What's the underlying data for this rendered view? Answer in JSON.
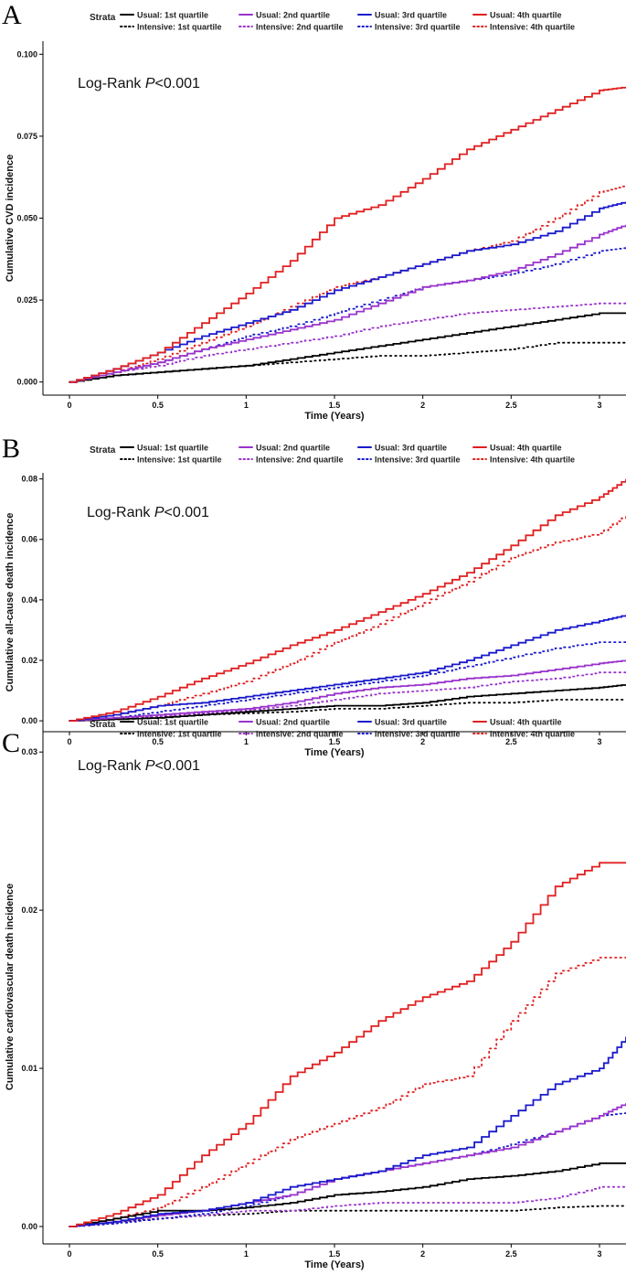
{
  "chart_data": [
    {
      "type": "line",
      "panel_label": "A",
      "legend_title": "Strata",
      "annotation_prefix": "Log-Rank ",
      "annotation_p": "P",
      "annotation_suffix": "<0.001",
      "xlabel": "Time (Years)",
      "ylabel": "Cumulative CVD incidence",
      "xlim": [
        -0.15,
        3.15
      ],
      "ylim": [
        -0.004,
        0.104
      ],
      "xticks": [
        0,
        0.5,
        1,
        1.5,
        2,
        2.5,
        3
      ],
      "xtick_labels": [
        "0",
        "0.5",
        "1",
        "1.5",
        "2",
        "2.5",
        "3"
      ],
      "yticks": [
        0,
        0.025,
        0.05,
        0.075,
        0.1
      ],
      "ytick_labels": [
        "0.000",
        "0.025",
        "0.050",
        "0.075",
        "0.100"
      ],
      "series": [
        {
          "name": "Usual: 1st quartile",
          "color": "#000000",
          "style": "solid",
          "x": [
            0,
            0.25,
            0.5,
            0.75,
            1,
            1.25,
            1.5,
            1.75,
            2,
            2.25,
            2.5,
            2.75,
            3,
            3.15
          ],
          "values": [
            0,
            0.002,
            0.003,
            0.004,
            0.005,
            0.007,
            0.009,
            0.011,
            0.013,
            0.015,
            0.017,
            0.019,
            0.021,
            0.021
          ]
        },
        {
          "name": "Intensive: 1st quartile",
          "color": "#000000",
          "style": "dotted",
          "x": [
            0,
            0.25,
            0.5,
            0.75,
            1,
            1.25,
            1.5,
            1.75,
            2,
            2.25,
            2.5,
            2.75,
            3,
            3.15
          ],
          "values": [
            0,
            0.002,
            0.003,
            0.004,
            0.005,
            0.006,
            0.007,
            0.008,
            0.008,
            0.009,
            0.01,
            0.012,
            0.012,
            0.012
          ]
        },
        {
          "name": "Usual: 2nd quartile",
          "color": "#9933cc",
          "style": "solid",
          "x": [
            0,
            0.25,
            0.5,
            0.75,
            1,
            1.25,
            1.5,
            1.75,
            2,
            2.25,
            2.5,
            2.75,
            3,
            3.15
          ],
          "values": [
            0,
            0.003,
            0.006,
            0.01,
            0.013,
            0.016,
            0.019,
            0.024,
            0.029,
            0.031,
            0.034,
            0.039,
            0.045,
            0.048
          ]
        },
        {
          "name": "Intensive: 2nd quartile",
          "color": "#9933cc",
          "style": "dotted",
          "x": [
            0,
            0.25,
            0.5,
            0.75,
            1,
            1.25,
            1.5,
            1.75,
            2,
            2.25,
            2.5,
            2.75,
            3,
            3.15
          ],
          "values": [
            0,
            0.003,
            0.005,
            0.008,
            0.01,
            0.012,
            0.014,
            0.017,
            0.019,
            0.021,
            0.022,
            0.023,
            0.024,
            0.024
          ]
        },
        {
          "name": "Usual: 3rd quartile",
          "color": "#1a1acc",
          "style": "solid",
          "x": [
            0,
            0.25,
            0.5,
            0.75,
            1,
            1.25,
            1.5,
            1.75,
            2,
            2.25,
            2.5,
            2.75,
            3,
            3.15
          ],
          "values": [
            0,
            0.004,
            0.009,
            0.014,
            0.018,
            0.022,
            0.028,
            0.032,
            0.036,
            0.04,
            0.042,
            0.046,
            0.053,
            0.055
          ]
        },
        {
          "name": "Intensive: 3rd quartile",
          "color": "#1a1acc",
          "style": "dotted",
          "x": [
            0,
            0.25,
            0.5,
            0.75,
            1,
            1.25,
            1.5,
            1.75,
            2,
            2.25,
            2.5,
            2.75,
            3,
            3.15
          ],
          "values": [
            0,
            0.003,
            0.006,
            0.01,
            0.014,
            0.017,
            0.021,
            0.025,
            0.029,
            0.031,
            0.033,
            0.036,
            0.04,
            0.041
          ]
        },
        {
          "name": "Usual: 4th quartile",
          "color": "#e02020",
          "style": "solid",
          "x": [
            0,
            0.25,
            0.5,
            0.75,
            1,
            1.25,
            1.5,
            1.75,
            2,
            2.25,
            2.5,
            2.75,
            3,
            3.15
          ],
          "values": [
            0,
            0.004,
            0.009,
            0.018,
            0.027,
            0.037,
            0.05,
            0.054,
            0.062,
            0.071,
            0.077,
            0.083,
            0.089,
            0.09
          ]
        },
        {
          "name": "Intensive: 4th quartile",
          "color": "#e02020",
          "style": "dotted",
          "x": [
            0,
            0.25,
            0.5,
            0.75,
            1,
            1.25,
            1.5,
            1.75,
            2,
            2.25,
            2.5,
            2.75,
            3,
            3.15
          ],
          "values": [
            0,
            0.003,
            0.007,
            0.012,
            0.017,
            0.023,
            0.029,
            0.032,
            0.036,
            0.04,
            0.043,
            0.05,
            0.058,
            0.06
          ]
        }
      ]
    },
    {
      "type": "line",
      "panel_label": "B",
      "legend_title": "Strata",
      "annotation_prefix": "Log-Rank ",
      "annotation_p": "P",
      "annotation_suffix": "<0.001",
      "xlabel": "Time (Years)",
      "ylabel": "Cumulative all-cause death incidence",
      "xlim": [
        -0.15,
        3.15
      ],
      "ylim": [
        -0.0036,
        0.082
      ],
      "xticks": [
        0,
        0.5,
        1,
        1.5,
        2,
        2.5,
        3
      ],
      "xtick_labels": [
        "0",
        "0.5",
        "1",
        "1.5",
        "2",
        "2.5",
        "3"
      ],
      "yticks": [
        0,
        0.02,
        0.04,
        0.06,
        0.08
      ],
      "ytick_labels": [
        "0.00",
        "0.02",
        "0.04",
        "0.06",
        "0.08"
      ],
      "series": [
        {
          "name": "Usual: 1st quartile",
          "color": "#000000",
          "style": "solid",
          "x": [
            0,
            0.25,
            0.5,
            0.75,
            1,
            1.25,
            1.5,
            1.75,
            2,
            2.25,
            2.5,
            2.75,
            3,
            3.15
          ],
          "values": [
            0,
            0.0005,
            0.001,
            0.002,
            0.003,
            0.004,
            0.005,
            0.005,
            0.006,
            0.008,
            0.009,
            0.01,
            0.011,
            0.012
          ]
        },
        {
          "name": "Intensive: 1st quartile",
          "color": "#000000",
          "style": "dotted",
          "x": [
            0,
            0.25,
            0.5,
            0.75,
            1,
            1.25,
            1.5,
            1.75,
            2,
            2.25,
            2.5,
            2.75,
            3,
            3.15
          ],
          "values": [
            0,
            0.0005,
            0.001,
            0.002,
            0.0025,
            0.003,
            0.004,
            0.004,
            0.005,
            0.006,
            0.006,
            0.007,
            0.007,
            0.007
          ]
        },
        {
          "name": "Usual: 2nd quartile",
          "color": "#9933cc",
          "style": "solid",
          "x": [
            0,
            0.25,
            0.5,
            0.75,
            1,
            1.25,
            1.5,
            1.75,
            2,
            2.25,
            2.5,
            2.75,
            3,
            3.15
          ],
          "values": [
            0,
            0.001,
            0.002,
            0.003,
            0.004,
            0.006,
            0.009,
            0.011,
            0.012,
            0.014,
            0.015,
            0.017,
            0.019,
            0.02
          ]
        },
        {
          "name": "Intensive: 2nd quartile",
          "color": "#9933cc",
          "style": "dotted",
          "x": [
            0,
            0.25,
            0.5,
            0.75,
            1,
            1.25,
            1.5,
            1.75,
            2,
            2.25,
            2.5,
            2.75,
            3,
            3.15
          ],
          "values": [
            0,
            0.0005,
            0.0015,
            0.0025,
            0.0035,
            0.005,
            0.007,
            0.009,
            0.01,
            0.011,
            0.013,
            0.014,
            0.016,
            0.016
          ]
        },
        {
          "name": "Usual: 3rd quartile",
          "color": "#1a1acc",
          "style": "solid",
          "x": [
            0,
            0.25,
            0.5,
            0.75,
            1,
            1.25,
            1.5,
            1.75,
            2,
            2.25,
            2.5,
            2.75,
            3,
            3.15
          ],
          "values": [
            0,
            0.002,
            0.005,
            0.006,
            0.008,
            0.01,
            0.012,
            0.014,
            0.016,
            0.02,
            0.025,
            0.03,
            0.033,
            0.035
          ]
        },
        {
          "name": "Intensive: 3rd quartile",
          "color": "#1a1acc",
          "style": "dotted",
          "x": [
            0,
            0.25,
            0.5,
            0.75,
            1,
            1.25,
            1.5,
            1.75,
            2,
            2.25,
            2.5,
            2.75,
            3,
            3.15
          ],
          "values": [
            0,
            0.001,
            0.003,
            0.005,
            0.007,
            0.009,
            0.011,
            0.013,
            0.015,
            0.018,
            0.021,
            0.024,
            0.026,
            0.026
          ]
        },
        {
          "name": "Usual: 4th quartile",
          "color": "#e02020",
          "style": "solid",
          "x": [
            0,
            0.25,
            0.5,
            0.75,
            1,
            1.25,
            1.5,
            1.75,
            2,
            2.25,
            2.5,
            2.75,
            3,
            3.15
          ],
          "values": [
            0,
            0.003,
            0.008,
            0.014,
            0.019,
            0.025,
            0.03,
            0.036,
            0.042,
            0.049,
            0.058,
            0.068,
            0.074,
            0.08
          ]
        },
        {
          "name": "Intensive: 4th quartile",
          "color": "#e02020",
          "style": "dotted",
          "x": [
            0,
            0.25,
            0.5,
            0.75,
            1,
            1.25,
            1.5,
            1.75,
            2,
            2.25,
            2.5,
            2.75,
            3,
            3.15
          ],
          "values": [
            0,
            0.002,
            0.005,
            0.009,
            0.013,
            0.019,
            0.026,
            0.032,
            0.039,
            0.046,
            0.054,
            0.059,
            0.062,
            0.068
          ]
        }
      ]
    },
    {
      "type": "line",
      "panel_label": "C",
      "legend_title": "Strata",
      "annotation_prefix": "Log-Rank ",
      "annotation_p": "P",
      "annotation_suffix": "<0.001",
      "xlabel": "Time (Years)",
      "ylabel": "Cumulative cardiovascular death incidence",
      "xlim": [
        -0.15,
        3.15
      ],
      "ylim": [
        -0.0011,
        0.0314
      ],
      "xticks": [
        0,
        0.5,
        1,
        1.5,
        2,
        2.5,
        3
      ],
      "xtick_labels": [
        "0",
        "0.5",
        "1",
        "1.5",
        "2",
        "2.5",
        "3"
      ],
      "yticks": [
        0,
        0.01,
        0.02,
        0.03
      ],
      "ytick_labels": [
        "0.00",
        "0.01",
        "0.02",
        "0.03"
      ],
      "series": [
        {
          "name": "Usual: 1st quartile",
          "color": "#000000",
          "style": "solid",
          "x": [
            0,
            0.25,
            0.5,
            0.75,
            1,
            1.25,
            1.5,
            1.75,
            2,
            2.25,
            2.5,
            2.75,
            3,
            3.15
          ],
          "values": [
            0,
            0.0005,
            0.001,
            0.001,
            0.0012,
            0.0015,
            0.002,
            0.0022,
            0.0025,
            0.003,
            0.0032,
            0.0035,
            0.004,
            0.004
          ]
        },
        {
          "name": "Intensive: 1st quartile",
          "color": "#000000",
          "style": "dotted",
          "x": [
            0,
            0.25,
            0.5,
            0.75,
            1,
            1.25,
            1.5,
            1.75,
            2,
            2.25,
            2.5,
            2.75,
            3,
            3.15
          ],
          "values": [
            0,
            0.0003,
            0.0005,
            0.0007,
            0.0008,
            0.001,
            0.001,
            0.001,
            0.001,
            0.001,
            0.001,
            0.0012,
            0.0013,
            0.0013
          ]
        },
        {
          "name": "Usual: 2nd quartile",
          "color": "#9933cc",
          "style": "solid",
          "x": [
            0,
            0.25,
            0.5,
            0.75,
            1,
            1.25,
            1.5,
            1.75,
            2,
            2.25,
            2.5,
            2.75,
            3,
            3.15
          ],
          "values": [
            0,
            0.0003,
            0.0007,
            0.001,
            0.0015,
            0.002,
            0.003,
            0.0035,
            0.004,
            0.0045,
            0.005,
            0.006,
            0.007,
            0.0078
          ]
        },
        {
          "name": "Intensive: 2nd quartile",
          "color": "#9933cc",
          "style": "dotted",
          "x": [
            0,
            0.25,
            0.5,
            0.75,
            1,
            1.25,
            1.5,
            1.75,
            2,
            2.25,
            2.5,
            2.75,
            3,
            3.15
          ],
          "values": [
            0,
            0.0002,
            0.0005,
            0.0007,
            0.001,
            0.001,
            0.0013,
            0.0015,
            0.0015,
            0.0015,
            0.0015,
            0.0018,
            0.0025,
            0.0025
          ]
        },
        {
          "name": "Usual: 3rd quartile",
          "color": "#1a1acc",
          "style": "solid",
          "x": [
            0,
            0.25,
            0.5,
            0.75,
            1,
            1.25,
            1.5,
            1.75,
            2,
            2.25,
            2.5,
            2.75,
            3,
            3.15
          ],
          "values": [
            0,
            0.0003,
            0.0008,
            0.001,
            0.0015,
            0.0025,
            0.003,
            0.0035,
            0.0045,
            0.005,
            0.007,
            0.009,
            0.01,
            0.012
          ]
        },
        {
          "name": "Intensive: 3rd quartile",
          "color": "#1a1acc",
          "style": "dotted",
          "x": [
            0,
            0.25,
            0.5,
            0.75,
            1,
            1.25,
            1.5,
            1.75,
            2,
            2.25,
            2.5,
            2.75,
            3,
            3.15
          ],
          "values": [
            0,
            0.0002,
            0.0005,
            0.0008,
            0.0013,
            0.002,
            0.003,
            0.0035,
            0.004,
            0.0045,
            0.0052,
            0.006,
            0.007,
            0.0072
          ]
        },
        {
          "name": "Usual: 4th quartile",
          "color": "#e02020",
          "style": "solid",
          "x": [
            0,
            0.25,
            0.5,
            0.75,
            1,
            1.25,
            1.5,
            1.75,
            2,
            2.25,
            2.5,
            2.75,
            3,
            3.15
          ],
          "values": [
            0,
            0.0008,
            0.002,
            0.0045,
            0.0065,
            0.0095,
            0.011,
            0.013,
            0.0145,
            0.0155,
            0.018,
            0.0215,
            0.023,
            0.023
          ]
        },
        {
          "name": "Intensive: 4th quartile",
          "color": "#e02020",
          "style": "dotted",
          "x": [
            0,
            0.25,
            0.5,
            0.75,
            1,
            1.25,
            1.5,
            1.75,
            2,
            2.25,
            2.5,
            2.75,
            3,
            3.15
          ],
          "values": [
            0,
            0.0005,
            0.0012,
            0.0025,
            0.004,
            0.0055,
            0.0065,
            0.0075,
            0.009,
            0.0095,
            0.013,
            0.016,
            0.017,
            0.017
          ]
        }
      ]
    }
  ]
}
